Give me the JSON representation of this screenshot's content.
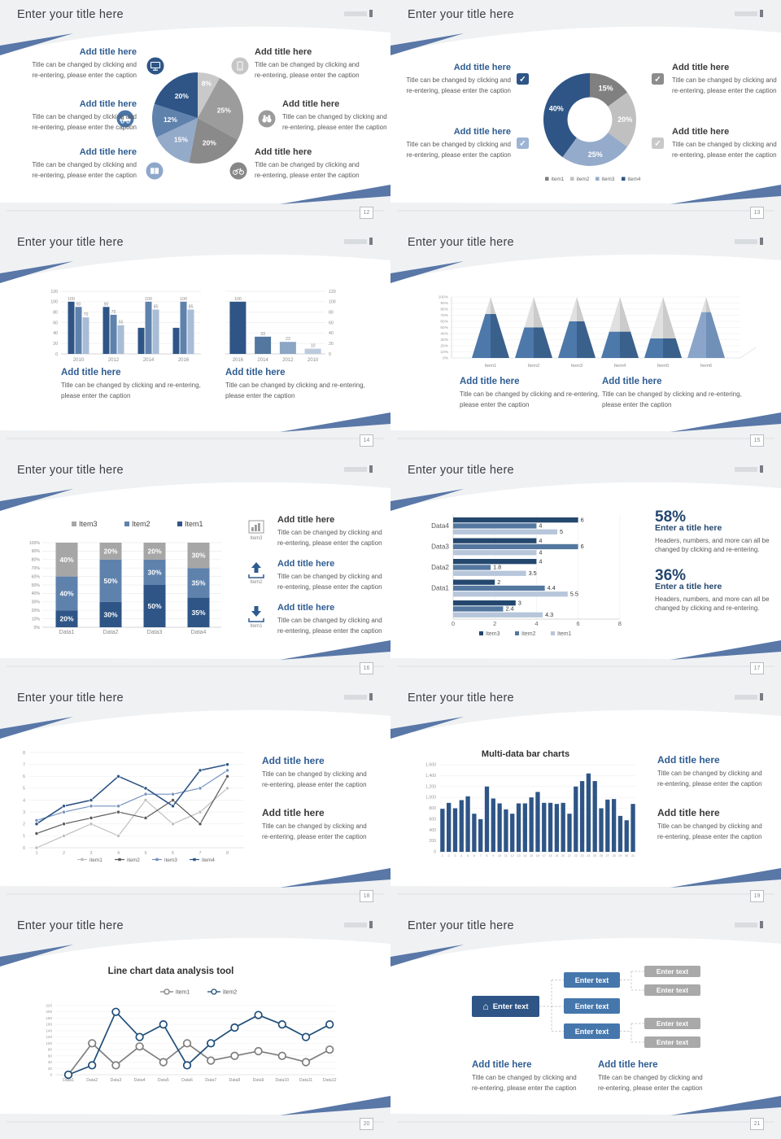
{
  "deck": {
    "slide_title": "Enter your title here",
    "heading": "Add title here",
    "stat_heading": "Enter a title here",
    "caption_a": [
      "Title can be changed by clicking and",
      "re-entering, please enter the caption"
    ],
    "caption_b": [
      "Title can be changed by clicking and re-entering,",
      "please enter the caption"
    ],
    "caption_stat": [
      "Headers, numbers, and more can all be",
      "changed by clicking and re-entering."
    ],
    "colors": {
      "navy": "#2e5586",
      "blue": "#5f82ad",
      "lightblue": "#94abca",
      "accent": "#2e5c92",
      "ribbon": "#5977a7"
    }
  },
  "slides": [
    {
      "page": "12",
      "icons": [
        "monitor-icon",
        "smartphone-icon",
        "car-icon",
        "binoculars-icon",
        "book-icon",
        "bicycle-icon"
      ]
    },
    {
      "page": "13",
      "checkbox_icons": [
        "checkbox-dark-blue",
        "checkbox-light-blue",
        "checkbox-dark-gray",
        "checkbox-light-gray"
      ]
    },
    {
      "page": "14"
    },
    {
      "page": "15"
    },
    {
      "page": "16",
      "icon_items": [
        {
          "icon": "bar-chart-icon",
          "label": "Item3"
        },
        {
          "icon": "upload-icon",
          "label": "Item2"
        },
        {
          "icon": "download-icon",
          "label": "Item1"
        }
      ]
    },
    {
      "page": "17",
      "stats": [
        {
          "value": "58%"
        },
        {
          "value": "36%"
        }
      ]
    },
    {
      "page": "18"
    },
    {
      "page": "19"
    },
    {
      "page": "20"
    },
    {
      "page": "21",
      "diagram": {
        "root": "Enter text",
        "level2": [
          "Enter text",
          "Enter text",
          "Enter text"
        ],
        "level3": [
          "Enter text",
          "Enter text",
          "Enter text",
          "Enter text"
        ]
      }
    }
  ],
  "chart_data": [
    {
      "slide_page": "12",
      "type": "pie",
      "labels": [
        "8%",
        "25%",
        "20%",
        "15%",
        "12%",
        "20%"
      ],
      "values": [
        8,
        25,
        20,
        15,
        12,
        20
      ],
      "colors": [
        "#c9c9c9",
        "#9c9c9c",
        "#8a8a8a",
        "#93aac9",
        "#5f82ad",
        "#2e5586"
      ]
    },
    {
      "slide_page": "13",
      "type": "pie",
      "subtype": "donut",
      "labels": [
        "15%",
        "20%",
        "25%",
        "40%"
      ],
      "values": [
        15,
        20,
        25,
        40
      ],
      "colors": [
        "#808080",
        "#c0c0c0",
        "#94abcb",
        "#2e5586"
      ],
      "legend": [
        "item1",
        "item2",
        "item3",
        "item4"
      ],
      "legend_position": "bottom"
    },
    {
      "slide_page": "14",
      "type": "bar",
      "subtype": "grouped",
      "categories": [
        "2010",
        "2012",
        "2014",
        "2016"
      ],
      "series": [
        {
          "values": [
            100,
            90,
            50,
            50
          ],
          "data_labels": [
            "100",
            "90",
            "",
            ""
          ],
          "color": "#2e5586"
        },
        {
          "values": [
            90,
            75,
            100,
            100
          ],
          "data_labels": [
            "90",
            "75",
            "100",
            "100"
          ],
          "color": "#5f82ad"
        },
        {
          "values": [
            70,
            55,
            85,
            85
          ],
          "data_labels": [
            "70",
            "55",
            "85",
            "85"
          ],
          "color": "#a9bcd6"
        }
      ],
      "ylim": [
        0,
        120
      ],
      "ytick_step": 20,
      "axis_side": "left"
    },
    {
      "slide_page": "14",
      "type": "bar",
      "categories": [
        "2016",
        "2014",
        "2012",
        "2010"
      ],
      "values": [
        100,
        33,
        23,
        10
      ],
      "data_labels": [
        "100",
        "33",
        "23",
        "10"
      ],
      "colors": [
        "#2e5586",
        "#53779f",
        "#8ba5c4",
        "#bccadd"
      ],
      "ylim": [
        0,
        120
      ],
      "ytick_step": 20,
      "axis_side": "right"
    },
    {
      "slide_page": "15",
      "type": "bar",
      "subtype": "pyramid-3d",
      "categories": [
        "Item1",
        "Item2",
        "Item3",
        "Item4",
        "Item5",
        "Item6"
      ],
      "values": [
        72,
        50,
        60,
        43,
        32,
        75
      ],
      "fill_colors": [
        "#4d78aa",
        "#4d78aa",
        "#4d78aa",
        "#4d78aa",
        "#4d78aa",
        "#8aa5c9"
      ],
      "rest_color": "#d9d9d9",
      "ylim_pct": [
        0,
        100
      ],
      "ytick_step_pct": 10
    },
    {
      "slide_page": "16",
      "type": "bar",
      "subtype": "stacked-100",
      "categories": [
        "Data1",
        "Data2",
        "Data3",
        "Data4"
      ],
      "series": [
        {
          "name": "Item1",
          "values": [
            20,
            30,
            50,
            35
          ],
          "color": "#2e5586"
        },
        {
          "name": "Item2",
          "values": [
            40,
            50,
            30,
            35
          ],
          "color": "#5f82ad"
        },
        {
          "name": "Item3",
          "values": [
            40,
            20,
            20,
            30
          ],
          "color": "#a6a6a6"
        }
      ],
      "legend": [
        "Item3",
        "Item2",
        "Item1"
      ],
      "legend_position": "top",
      "ylim_pct": [
        0,
        100
      ],
      "ytick_step_pct": 10
    },
    {
      "slide_page": "17",
      "type": "bar",
      "subtype": "horizontal-grouped",
      "categories": [
        "Data4",
        "Data3",
        "Data2",
        "Data1",
        ""
      ],
      "series": [
        {
          "name": "Item3",
          "values": [
            6,
            4,
            4,
            2,
            3
          ],
          "color": "#24476e"
        },
        {
          "name": "Item2",
          "values": [
            4,
            6,
            1.8,
            4.4,
            2.4
          ],
          "color": "#54779f"
        },
        {
          "name": "Item1",
          "values": [
            5,
            4,
            3.5,
            5.5,
            4.3
          ],
          "color": "#b7c6da"
        }
      ],
      "xlim": [
        0,
        8
      ],
      "xtick_step": 2,
      "legend_position": "bottom"
    },
    {
      "slide_page": "18",
      "type": "line",
      "x": [
        1,
        2,
        3,
        4,
        5,
        6,
        7,
        8
      ],
      "series": [
        {
          "name": "item1",
          "values": [
            0,
            1,
            2,
            1,
            4,
            2,
            3,
            5
          ],
          "color": "#bfbfbf"
        },
        {
          "name": "item2",
          "values": [
            1.2,
            2,
            2.5,
            3,
            2.5,
            4,
            2,
            6
          ],
          "color": "#595959"
        },
        {
          "name": "item3",
          "values": [
            2.3,
            3,
            3.5,
            3.5,
            4.5,
            4.5,
            5,
            6.5
          ],
          "color": "#7491bd"
        },
        {
          "name": "item4",
          "values": [
            2,
            3.5,
            4,
            6,
            5,
            3.5,
            6.5,
            7
          ],
          "color": "#2e5586"
        }
      ],
      "ylim": [
        0,
        8
      ],
      "ytick_step": 1,
      "legend_position": "bottom"
    },
    {
      "slide_page": "19",
      "type": "bar",
      "title": "Multi-data bar charts",
      "categories": [
        "1",
        "2",
        "3",
        "4",
        "5",
        "6",
        "7",
        "8",
        "9",
        "10",
        "11",
        "12",
        "13",
        "14",
        "15",
        "16",
        "17",
        "18",
        "19",
        "20",
        "21",
        "22",
        "23",
        "24",
        "25",
        "26",
        "27",
        "28",
        "29",
        "30",
        "31"
      ],
      "values": [
        790,
        900,
        800,
        950,
        1020,
        700,
        600,
        1200,
        980,
        890,
        780,
        700,
        890,
        890,
        1000,
        1100,
        900,
        900,
        880,
        900,
        700,
        1200,
        1300,
        1440,
        1300,
        800,
        960,
        970,
        660,
        580,
        880
      ],
      "color": "#2e5586",
      "ylim": [
        0,
        1600
      ],
      "ytick_step": 200
    },
    {
      "slide_page": "20",
      "type": "line",
      "title": "Line chart data analysis tool",
      "categories": [
        "Data1",
        "Data2",
        "Data3",
        "Data4",
        "Data5",
        "Data6",
        "Data7",
        "Data8",
        "Data9",
        "Data10",
        "Data11",
        "Data12"
      ],
      "series": [
        {
          "name": "item1",
          "values": [
            0,
            100,
            30,
            90,
            40,
            100,
            45,
            60,
            75,
            60,
            40,
            80
          ],
          "color": "#7f7f7f"
        },
        {
          "name": "item2",
          "values": [
            0,
            30,
            200,
            120,
            160,
            30,
            100,
            150,
            190,
            160,
            120,
            160
          ],
          "color": "#1f4e79"
        }
      ],
      "ylim": [
        0,
        220
      ],
      "ytick_step": 20,
      "legend_position": "top"
    }
  ]
}
